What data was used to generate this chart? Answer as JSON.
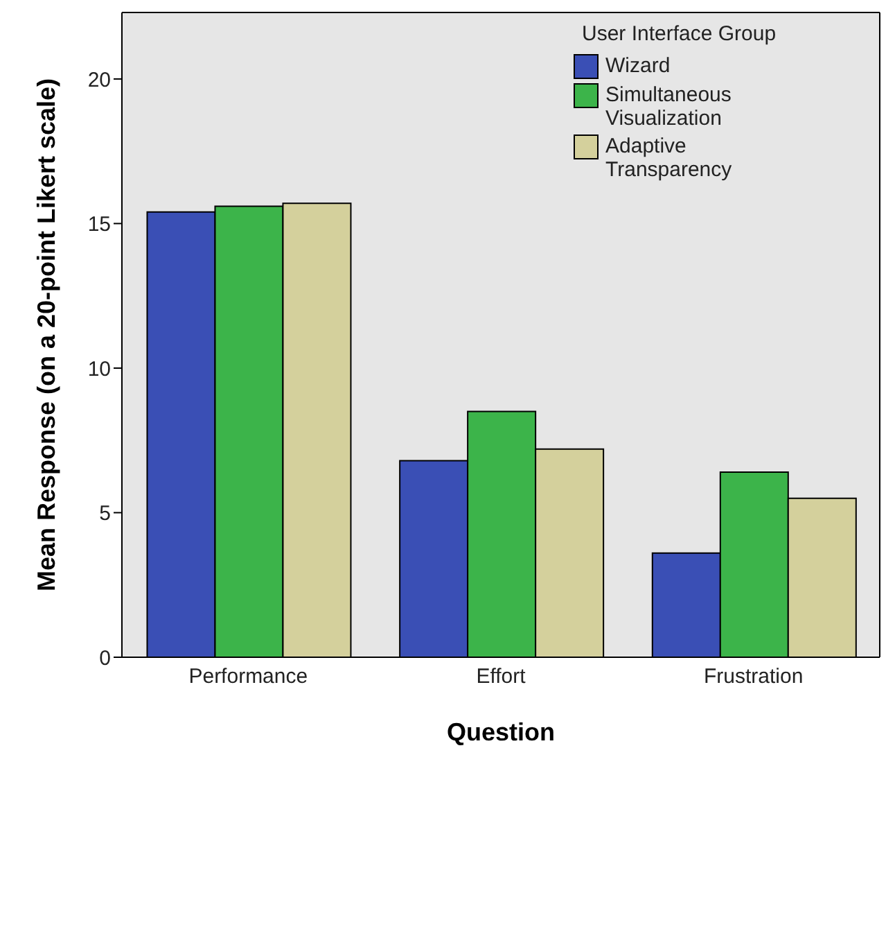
{
  "chart_data": {
    "type": "bar",
    "xlabel": "Question",
    "ylabel": "Mean Response (on a 20-point Likert scale)",
    "legend_title": "User Interface Group",
    "categories": [
      "Performance",
      "Effort",
      "Frustration"
    ],
    "series": [
      {
        "name": "Wizard",
        "color": "#3a4fb5",
        "values": [
          15.4,
          6.8,
          3.6
        ]
      },
      {
        "name": "Simultaneous Visualization",
        "color": "#3cb44a",
        "values": [
          15.6,
          8.5,
          6.4
        ]
      },
      {
        "name": "Adaptive Transparency",
        "color": "#d4d09c",
        "values": [
          15.7,
          7.2,
          5.5
        ]
      }
    ],
    "ylim": [
      0,
      22.3
    ],
    "yticks": [
      0,
      5,
      10,
      15,
      20
    ],
    "grid": false,
    "legend": "top right"
  }
}
